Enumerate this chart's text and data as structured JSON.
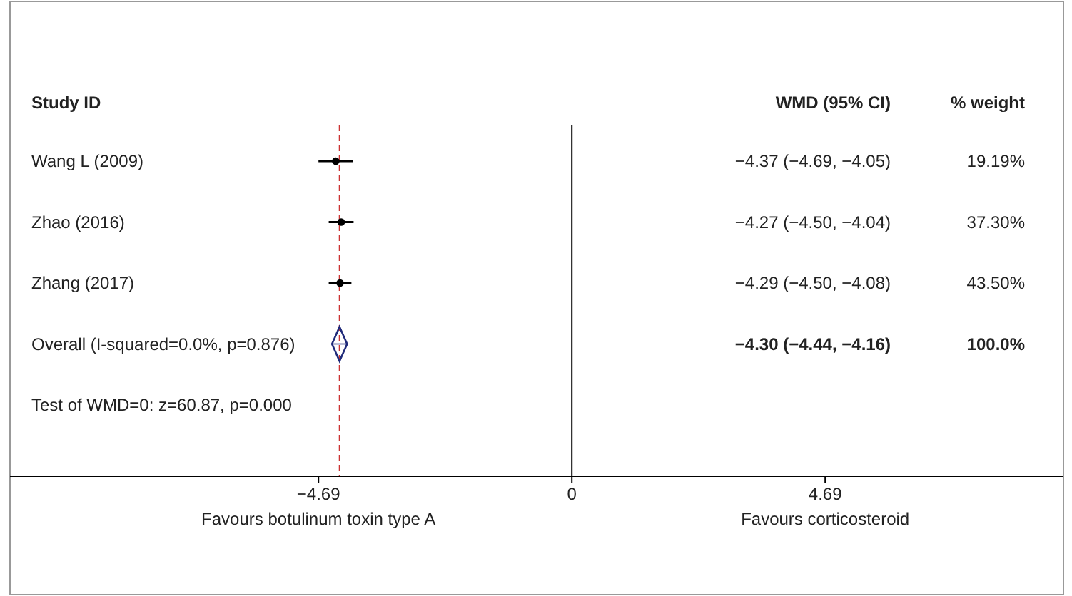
{
  "chart_data": {
    "type": "scatter",
    "orientation": "horizontal",
    "ylabel": "Study ID",
    "categories": [
      "Wang L (2009)",
      "Zhao (2016)",
      "Zhang (2017)",
      "Overall (I-squared=0.0%, p=0.876)",
      "Test of WMD=0: z=60.87, p=0.000"
    ],
    "series": [
      {
        "marker": "circle",
        "color": "#000000",
        "values": [
          -4.37,
          -4.27,
          -4.29,
          null,
          null
        ],
        "errors": [
          [
            -4.69,
            -4.05
          ],
          [
            -4.5,
            -4.04
          ],
          [
            -4.5,
            -4.08
          ],
          null,
          null
        ]
      },
      {
        "marker": "diamond",
        "color": "#1f2a7a",
        "values": [
          null,
          null,
          null,
          -4.3,
          null
        ],
        "errors": [
          null,
          null,
          null,
          [
            -4.44,
            -4.16
          ],
          null
        ]
      }
    ],
    "xlim": [
      -10.4,
      9.1
    ],
    "xticks": [
      {
        "value": -4.69,
        "label": "−4.69"
      },
      0,
      4.69
    ],
    "ref_lines": [
      {
        "axis": "x",
        "value": 0,
        "color": "#000000",
        "line_style": "solid"
      },
      {
        "axis": "x",
        "value": -4.3,
        "color": "#cc3333",
        "line_style": "dashed"
      }
    ],
    "annotations": [
      "WMD (95% CI)",
      "% weight",
      "−4.37 (−4.69, −4.05)",
      "−4.27 (−4.50, −4.04)",
      "−4.29 (−4.50, −4.08)",
      "−4.30 (−4.44, −4.16)",
      "19.19%",
      "37.30%",
      "43.50%",
      "100.0%",
      "Favours botulinum toxin type A",
      "Favours corticosteroid"
    ]
  }
}
